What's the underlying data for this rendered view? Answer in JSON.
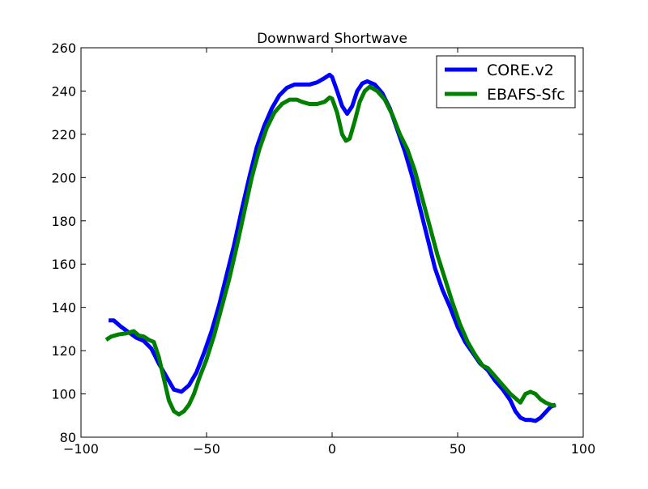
{
  "chart_data": {
    "type": "line",
    "title": "Downward Shortwave",
    "series": [
      {
        "name": "CORE.v2",
        "color": "#0000ff",
        "x": [
          -89,
          -87,
          -84,
          -81,
          -78,
          -75,
          -72,
          -69,
          -66,
          -63,
          -60,
          -57,
          -54,
          -51,
          -48,
          -45,
          -42,
          -39,
          -36,
          -33,
          -30,
          -27,
          -24,
          -21,
          -18,
          -15,
          -12,
          -9,
          -6,
          -3,
          -1,
          0,
          2,
          4,
          6,
          8,
          10,
          12,
          14,
          17,
          20,
          23,
          26,
          29,
          32,
          35,
          38,
          41,
          44,
          47,
          50,
          53,
          56,
          59,
          62,
          65,
          68,
          71,
          73,
          75,
          77,
          79,
          81,
          83,
          85,
          87,
          89
        ],
        "values": [
          134,
          134,
          131,
          128.5,
          126,
          124.5,
          121,
          114,
          108,
          102,
          101,
          104,
          110,
          119,
          129,
          141,
          155,
          169,
          185,
          200,
          214,
          224,
          232,
          238,
          241.5,
          243,
          243,
          243,
          244,
          246,
          247.5,
          246.5,
          240,
          233,
          229.5,
          233,
          240,
          243.5,
          244.5,
          243,
          239,
          232,
          222,
          212,
          200,
          186,
          172,
          158,
          148,
          140,
          131,
          124,
          119,
          114,
          111,
          106,
          102,
          97,
          92,
          89,
          88,
          88,
          87.5,
          89,
          91.5,
          94,
          95
        ]
      },
      {
        "name": "EBAFS-Sfc",
        "color": "#008000",
        "x": [
          -90,
          -88,
          -85,
          -82,
          -79,
          -77,
          -75,
          -73,
          -71,
          -69,
          -67,
          -65,
          -63,
          -61,
          -59,
          -57,
          -55,
          -53,
          -50,
          -47,
          -44,
          -41,
          -38,
          -35,
          -32,
          -29,
          -26,
          -23,
          -20,
          -17,
          -14,
          -12,
          -9,
          -6,
          -3,
          -1,
          0,
          2,
          4,
          5.5,
          7,
          9,
          11,
          13,
          15,
          18,
          21,
          24,
          27,
          30,
          33,
          36,
          39,
          42,
          45,
          48,
          51,
          54,
          57,
          60,
          62,
          65,
          68,
          71,
          73,
          75,
          77,
          79,
          81,
          83,
          85,
          87,
          89
        ],
        "values": [
          125,
          126.5,
          127.5,
          128,
          129,
          127,
          126.5,
          125,
          124,
          117,
          107,
          97,
          92,
          90.5,
          92,
          95,
          100,
          107,
          116,
          127,
          140,
          153,
          168,
          184,
          200,
          213,
          223,
          230,
          234,
          236,
          236,
          235,
          234,
          234,
          235,
          237,
          236.5,
          230,
          220,
          217,
          218,
          226,
          235,
          240,
          242,
          240,
          236,
          229,
          220,
          213,
          203,
          190,
          177,
          164,
          153,
          142,
          132,
          124,
          118,
          113,
          112,
          108,
          104,
          100,
          98,
          96,
          100,
          101,
          100,
          97.5,
          96,
          95,
          94.5
        ]
      }
    ],
    "xlim": [
      -100,
      100
    ],
    "xticks": [
      {
        "value": -100,
        "label": "−100"
      },
      {
        "value": -50,
        "label": "−50"
      },
      0,
      50,
      100
    ],
    "ylim": [
      80,
      260
    ],
    "yticks": [
      80,
      100,
      120,
      140,
      160,
      180,
      200,
      220,
      240,
      260
    ],
    "legend": "upper right",
    "grid": false
  }
}
